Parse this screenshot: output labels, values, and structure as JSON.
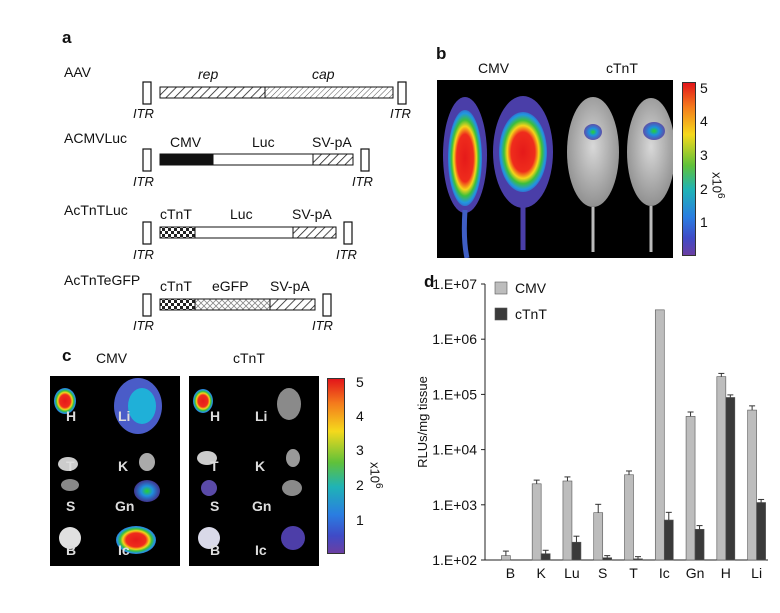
{
  "panel_a": {
    "letter": "a",
    "constructs": [
      {
        "name": "AAV",
        "segments": [
          "rep",
          "cap"
        ]
      },
      {
        "name": "ACMVLuc",
        "segments": [
          "CMV",
          "Luc",
          "SV-pA"
        ]
      },
      {
        "name": "AcTnTLuc",
        "segments": [
          "cTnT",
          "Luc",
          "SV-pA"
        ]
      },
      {
        "name": "AcTnTeGFP",
        "segments": [
          "cTnT",
          "eGFP",
          "SV-pA"
        ]
      }
    ],
    "itr_label": "ITR"
  },
  "panel_b": {
    "letter": "b",
    "group_labels": [
      "CMV",
      "cTnT"
    ],
    "scale_ticks": [
      "5",
      "4",
      "3",
      "2",
      "1"
    ],
    "scale_unit": "x10",
    "scale_exp": "6"
  },
  "panel_c": {
    "letter": "c",
    "group_labels": [
      "CMV",
      "cTnT"
    ],
    "organ_labels_left": [
      "H",
      "T",
      "S",
      "B"
    ],
    "organ_labels_right": [
      "Li",
      "K",
      "Gn",
      "Ic"
    ],
    "scale_ticks": [
      "5",
      "4",
      "3",
      "2",
      "1"
    ],
    "scale_unit": "x10",
    "scale_exp": "6"
  },
  "panel_d": {
    "letter": "d"
  },
  "chart_data": {
    "type": "bar",
    "ylabel": "RLUs/mg tissue",
    "yscale": "log",
    "ylim": [
      100,
      10000000
    ],
    "ytick_labels": [
      "1.E+07",
      "1.E+06",
      "1.E+05",
      "1.E+04",
      "1.E+03",
      "1.E+02"
    ],
    "categories": [
      "B",
      "K",
      "Lu",
      "S",
      "T",
      "Ic",
      "Gn",
      "H",
      "Li"
    ],
    "legend_position": "top-left",
    "series": [
      {
        "name": "CMV",
        "color": "#bdbdbd",
        "values": [
          120,
          2400,
          2700,
          720,
          3500,
          3400000,
          40000,
          210000,
          52000
        ],
        "errors": [
          25,
          400,
          500,
          300,
          600,
          0,
          8000,
          30000,
          10000
        ]
      },
      {
        "name": "cTnT",
        "color": "#3a3a3a",
        "values": [
          100,
          130,
          210,
          110,
          105,
          530,
          360,
          88000,
          1100
        ],
        "errors": [
          0,
          20,
          60,
          10,
          10,
          200,
          60,
          10000,
          150
        ]
      }
    ]
  }
}
